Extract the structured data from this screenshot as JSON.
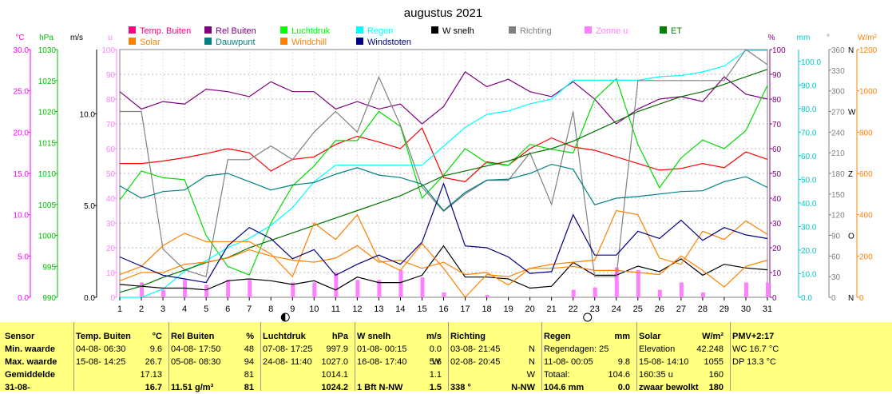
{
  "chart_data": {
    "type": "line",
    "title": "augustus 2021",
    "x": [
      1,
      2,
      3,
      4,
      5,
      6,
      7,
      8,
      9,
      10,
      11,
      12,
      13,
      14,
      15,
      16,
      17,
      18,
      19,
      20,
      21,
      22,
      23,
      24,
      25,
      26,
      27,
      28,
      29,
      30,
      31
    ],
    "moon_markers": [
      {
        "day": 9,
        "phase": "half"
      },
      {
        "day": 23,
        "phase": "full"
      }
    ],
    "axes": [
      {
        "unit": "°C",
        "color": "#ff00ff",
        "range": [
          0,
          30
        ],
        "ticks": [
          "0.0",
          "5.0",
          "10.0",
          "15.0",
          "20.0",
          "25.0",
          "30.0"
        ]
      },
      {
        "unit": "hPa",
        "color": "#00c000",
        "range": [
          990,
          1030
        ],
        "ticks": [
          "990",
          "995",
          "1000",
          "1005",
          "1010",
          "1015",
          "1020",
          "1025",
          "1030"
        ]
      },
      {
        "unit": "m/s",
        "color": "#000000",
        "range": [
          0,
          13.5
        ],
        "ticks": [
          "0.0",
          "5.0",
          "10.0"
        ]
      },
      {
        "unit": "u",
        "color": "#ff80ff",
        "range": [
          0,
          100
        ],
        "ticks": [
          "0",
          "10",
          "20",
          "30",
          "40",
          "50",
          "60",
          "70",
          "80",
          "90",
          "100"
        ]
      },
      {
        "unit": "%",
        "color": "#800080",
        "range": [
          0,
          100
        ],
        "ticks": [
          "0",
          "10",
          "20",
          "30",
          "40",
          "50",
          "60",
          "70",
          "80",
          "90",
          "100"
        ]
      },
      {
        "unit": "mm",
        "color": "#00c8c8",
        "range": [
          0,
          105
        ],
        "ticks": [
          "0.0",
          "10.0",
          "20.0",
          "30.0",
          "40.0",
          "50.0",
          "60.0",
          "70.0",
          "80.0",
          "90.0",
          "100.0"
        ]
      },
      {
        "unit": "°",
        "color": "#808080",
        "range": [
          0,
          360
        ],
        "ticks": [
          "0",
          "30",
          "60",
          "90",
          "120",
          "150",
          "180",
          "210",
          "240",
          "270",
          "300",
          "330",
          "360"
        ],
        "compass": {
          "0": "N",
          "90": "O",
          "180": "Z",
          "270": "W",
          "360": "N"
        }
      },
      {
        "unit": "W/m²",
        "color": "#ff8000",
        "range": [
          0,
          1200
        ],
        "ticks": [
          "0",
          "200",
          "400",
          "600",
          "800",
          "1000",
          "1200"
        ]
      }
    ],
    "legend": [
      {
        "label": "Temp. Buiten",
        "color": "#ff0080"
      },
      {
        "label": "Rel Buiten",
        "color": "#800080"
      },
      {
        "label": "Luchtdruk",
        "color": "#00ff00"
      },
      {
        "label": "Regen",
        "color": "#00ffff"
      },
      {
        "label": "W snelh",
        "color": "#000000"
      },
      {
        "label": "Richting",
        "color": "#808080"
      },
      {
        "label": "Zonne u",
        "color": "#ff80ff"
      },
      {
        "label": "ET",
        "color": "#008000"
      },
      {
        "label": "Solar",
        "color": "#ff8000"
      },
      {
        "label": "Dauwpunt",
        "color": "#008080"
      },
      {
        "label": "Windchill",
        "color": "#ff8000"
      },
      {
        "label": "Windstoten",
        "color": "#000080"
      }
    ],
    "series": [
      {
        "name": "Temp. Buiten",
        "axis": 0,
        "color": "#ff0000",
        "values": [
          16.2,
          16.2,
          16.5,
          16.9,
          17.4,
          18.0,
          17.5,
          15.3,
          16.7,
          17.0,
          18.5,
          19.5,
          18.8,
          18.0,
          20.5,
          14.5,
          14.0,
          16.4,
          16.0,
          18.0,
          19.3,
          18.2,
          17.8,
          17.0,
          16.2,
          15.4,
          15.6,
          16.2,
          15.7,
          17.6,
          16.7
        ]
      },
      {
        "name": "Rel Buiten",
        "axis": 4,
        "color": "#800080",
        "values": [
          83,
          76,
          79,
          78,
          84,
          83,
          81,
          87,
          83,
          83,
          76,
          79,
          76,
          78,
          70,
          77,
          91,
          85,
          88,
          83,
          81,
          87,
          80,
          70,
          76,
          80,
          81,
          79,
          89,
          82,
          80
        ]
      },
      {
        "name": "Luchtdruk",
        "axis": 1,
        "color": "#00dd00",
        "values": [
          1005.7,
          1010.4,
          1009.3,
          1009.0,
          1000.0,
          995.0,
          993.6,
          1002.0,
          1008.0,
          1011.2,
          1015.3,
          1015.3,
          1020.0,
          1017.6,
          1006.0,
          1009.7,
          1014.0,
          1011.7,
          1011.3,
          1014.7,
          1013.9,
          1013.3,
          1022.0,
          1025.3,
          1014.7,
          1007.7,
          1012.5,
          1015.4,
          1014.0,
          1016.9,
          1024.2
        ]
      },
      {
        "name": "Regen",
        "axis": 5,
        "color": "#00ffff",
        "values": [
          0.0,
          0.0,
          3.5,
          11.0,
          15.5,
          21.0,
          25.0,
          30.5,
          38.0,
          49.0,
          56.0,
          56.0,
          56.0,
          56.0,
          56.0,
          64.0,
          72.0,
          77.5,
          79.0,
          82.0,
          84.0,
          92.0,
          92.0,
          92.0,
          92.0,
          93.5,
          94.0,
          95.5,
          98.0,
          104.6,
          104.6
        ]
      },
      {
        "name": "W snelh",
        "axis": 2,
        "color": "#000000",
        "values": [
          0.7,
          0.6,
          0.5,
          0.5,
          0.4,
          0.9,
          1.0,
          0.9,
          0.7,
          0.9,
          0.4,
          1.1,
          0.8,
          0.8,
          1.2,
          2.8,
          1.1,
          1.1,
          1.0,
          0.5,
          0.6,
          1.9,
          1.2,
          1.2,
          1.7,
          1.4,
          2.1,
          1.2,
          1.8,
          1.6,
          1.5
        ]
      },
      {
        "name": "Richting",
        "axis": 6,
        "color": "#808080",
        "values": [
          270,
          270,
          70,
          40,
          30,
          200,
          200,
          220,
          200,
          240,
          270,
          240,
          320,
          250,
          160,
          125,
          150,
          170,
          170,
          210,
          135,
          270,
          30,
          30,
          315,
          315,
          315,
          315,
          315,
          360,
          338
        ]
      },
      {
        "name": "Zonne u",
        "axis": 3,
        "type": "bar",
        "color": "#ff80ff",
        "values": [
          0,
          6,
          3,
          7,
          5,
          7,
          7,
          0,
          6,
          6,
          10,
          7,
          7,
          11,
          8,
          2,
          0,
          1,
          0,
          0,
          0,
          3,
          4,
          12,
          11,
          3,
          6,
          2,
          0,
          6,
          6
        ]
      },
      {
        "name": "ET",
        "axis": 4,
        "color": "#007000",
        "values": [
          2,
          4.5,
          8,
          11,
          14,
          16,
          20,
          23,
          26,
          29,
          32,
          35,
          38,
          41,
          45,
          49,
          51,
          53,
          55,
          58,
          60,
          63,
          67,
          71,
          75,
          78,
          81,
          83,
          86,
          89,
          92
        ]
      },
      {
        "name": "Solar",
        "axis": 7,
        "color": "#ff8000",
        "values": [
          110,
          150,
          250,
          310,
          270,
          270,
          270,
          210,
          100,
          360,
          280,
          400,
          180,
          130,
          260,
          140,
          0,
          110,
          100,
          140,
          160,
          170,
          180,
          420,
          400,
          190,
          160,
          320,
          280,
          370,
          305
        ]
      },
      {
        "name": "Dauwpunt",
        "axis": 0,
        "color": "#008080",
        "values": [
          13.5,
          12.0,
          12.8,
          13.0,
          14.7,
          15.0,
          14.0,
          13.0,
          13.6,
          13.9,
          14.9,
          15.7,
          14.8,
          14.5,
          13.7,
          10.5,
          12.7,
          14.2,
          14.3,
          15.0,
          16.1,
          15.5,
          11.2,
          12.0,
          12.2,
          12.5,
          12.8,
          12.9,
          14.0,
          14.6,
          13.3
        ]
      },
      {
        "name": "Windchill",
        "axis": 7,
        "color": "#ff8000",
        "values": [
          80,
          120,
          120,
          160,
          170,
          190,
          230,
          200,
          180,
          170,
          190,
          250,
          170,
          180,
          140,
          170,
          110,
          120,
          60,
          140,
          140,
          150,
          130,
          130,
          120,
          110,
          200,
          130,
          50,
          150,
          180
        ]
      },
      {
        "name": "Windstoten",
        "axis": 2,
        "color": "#000080",
        "values": [
          2.2,
          1.7,
          1.2,
          1.0,
          0.8,
          2.8,
          3.8,
          3.2,
          2.1,
          2.6,
          1.2,
          1.8,
          2.3,
          1.8,
          3.0,
          6.2,
          2.8,
          2.7,
          2.2,
          1.3,
          1.4,
          4.5,
          2.3,
          2.3,
          3.6,
          3.2,
          4.2,
          3.1,
          3.8,
          3.4,
          3.2
        ]
      }
    ]
  },
  "stats": {
    "cols": [
      {
        "title": "Sensor",
        "unit": "",
        "rows": [
          [
            "Min. waarde",
            "",
            ""
          ],
          [
            "Max. waarde",
            "",
            ""
          ],
          [
            "Gemiddelde",
            "",
            ""
          ],
          [
            "31-08-",
            "",
            ""
          ]
        ]
      },
      {
        "title": "Temp. Buiten",
        "unit": "°C",
        "rows": [
          [
            "04-08- 06:30",
            "",
            "9.6"
          ],
          [
            "15-08- 14:25",
            "",
            "26.7"
          ],
          [
            "",
            "",
            "17.13"
          ],
          [
            "",
            "",
            "16.7"
          ]
        ]
      },
      {
        "title": "Rel Buiten",
        "unit": "%",
        "rows": [
          [
            "04-08- 17:50",
            "",
            "48"
          ],
          [
            "05-08- 08:30",
            "",
            "94"
          ],
          [
            "",
            "",
            "81"
          ],
          [
            "11.51 g/m³",
            "",
            "81"
          ]
        ]
      },
      {
        "title": "Luchtdruk",
        "unit": "hPa",
        "rows": [
          [
            "07-08- 17:25",
            "",
            "997.9"
          ],
          [
            "24-08- 11:40",
            "",
            "1027.0"
          ],
          [
            "",
            "",
            "1014.1"
          ],
          [
            "",
            "",
            "1024.2"
          ]
        ]
      },
      {
        "title": "W snelh",
        "unit": "m/s",
        "rows": [
          [
            "01-08- 00:15",
            "",
            "0.0"
          ],
          [
            "16-08- 17:40",
            "W",
            "5.6"
          ],
          [
            "",
            "",
            "1.1"
          ],
          [
            "1 Bft N-NW",
            "",
            "1.5"
          ]
        ]
      },
      {
        "title": "Richting",
        "unit": "",
        "rows": [
          [
            "03-08- 21:45",
            "",
            "N"
          ],
          [
            "02-08- 20:45",
            "",
            "N"
          ],
          [
            "",
            "",
            "W"
          ],
          [
            "338 °",
            "",
            "N-NW"
          ]
        ]
      },
      {
        "title": "Regen",
        "unit": "mm",
        "rows": [
          [
            "Regendagen: 25",
            "",
            ""
          ],
          [
            "11-08- 00:05",
            "",
            "9.8"
          ],
          [
            "Totaal:",
            "",
            "104.6"
          ],
          [
            "104.6 mm",
            "",
            "0.0"
          ]
        ]
      },
      {
        "title": "Solar",
        "unit": "W/m²",
        "rows": [
          [
            "Elevation",
            "",
            "42.248"
          ],
          [
            "15-08- 14:10",
            "",
            "1055"
          ],
          [
            "160:35 u",
            "",
            "160"
          ],
          [
            "zwaar bewolkt",
            "",
            "180"
          ]
        ]
      },
      {
        "title": "PMV+2:17",
        "unit": "",
        "rows": [
          [
            "WC 16.7 °C",
            "",
            ""
          ],
          [
            "DP 13.3 °C",
            "",
            ""
          ],
          [
            "",
            "",
            ""
          ],
          [
            "",
            "",
            ""
          ]
        ]
      }
    ]
  }
}
